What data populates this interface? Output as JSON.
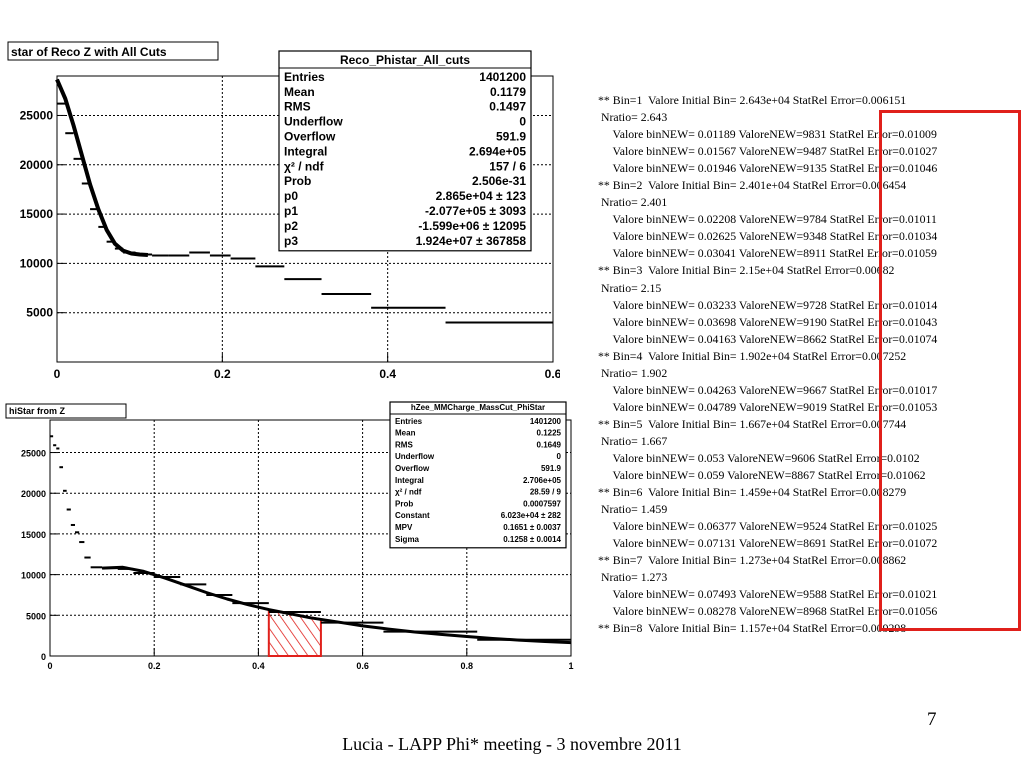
{
  "plot1": {
    "title": "star of Reco Z with All Cuts",
    "stats": {
      "name": "Reco_Phistar_All_cuts",
      "rows": [
        {
          "k": "Entries",
          "v": "1401200"
        },
        {
          "k": "Mean",
          "v": "0.1179"
        },
        {
          "k": "RMS",
          "v": "0.1497"
        },
        {
          "k": "Underflow",
          "v": "0"
        },
        {
          "k": "Overflow",
          "v": "591.9"
        },
        {
          "k": "Integral",
          "v": "2.694e+05"
        },
        {
          "k": "χ² / ndf",
          "v": "157 / 6"
        },
        {
          "k": "Prob",
          "v": "2.506e-31"
        },
        {
          "k": "p0",
          "v": "2.865e+04 ± 123"
        },
        {
          "k": "p1",
          "v": "-2.077e+05 ± 3093"
        },
        {
          "k": "p2",
          "v": "-1.599e+06 ± 12095"
        },
        {
          "k": "p3",
          "v": "1.924e+07 ± 367858"
        }
      ]
    }
  },
  "plot2": {
    "title": "hiStar from Z",
    "stats": {
      "name": "hZee_MMCharge_MassCut_PhiStar",
      "rows": [
        {
          "k": "Entries",
          "v": "1401200"
        },
        {
          "k": "Mean",
          "v": "0.1225"
        },
        {
          "k": "RMS",
          "v": "0.1649"
        },
        {
          "k": "Underflow",
          "v": "0"
        },
        {
          "k": "Overflow",
          "v": "591.9"
        },
        {
          "k": "Integral",
          "v": "2.706e+05"
        },
        {
          "k": "χ² / ndf",
          "v": "28.59 / 9"
        },
        {
          "k": "Prob",
          "v": "0.0007597"
        },
        {
          "k": "Constant",
          "v": "6.023e+04 ± 282"
        },
        {
          "k": "MPV",
          "v": "0.1651 ± 0.0037"
        },
        {
          "k": "Sigma",
          "v": "0.1258 ± 0.0014"
        }
      ]
    }
  },
  "chart_data": [
    {
      "type": "line",
      "title": "star of Reco Z with All Cuts",
      "xlim": [
        0,
        0.6
      ],
      "ylim": [
        0,
        29000
      ],
      "xticks": [
        "0",
        "0.2",
        "0.4",
        "0.6"
      ],
      "yticks": [
        "5000",
        "10000",
        "15000",
        "20000",
        "25000"
      ],
      "grid": true,
      "legend": "top-right",
      "histogram": [
        {
          "x0": 0.0,
          "x1": 0.01,
          "y": 26200
        },
        {
          "x0": 0.01,
          "x1": 0.02,
          "y": 23200
        },
        {
          "x0": 0.02,
          "x1": 0.03,
          "y": 20600
        },
        {
          "x0": 0.03,
          "x1": 0.04,
          "y": 18100
        },
        {
          "x0": 0.04,
          "x1": 0.05,
          "y": 15500
        },
        {
          "x0": 0.05,
          "x1": 0.06,
          "y": 13700
        },
        {
          "x0": 0.06,
          "x1": 0.07,
          "y": 12200
        },
        {
          "x0": 0.07,
          "x1": 0.08,
          "y": 11500
        },
        {
          "x0": 0.08,
          "x1": 0.095,
          "y": 11100
        },
        {
          "x0": 0.095,
          "x1": 0.115,
          "y": 10900
        },
        {
          "x0": 0.115,
          "x1": 0.135,
          "y": 10800
        },
        {
          "x0": 0.135,
          "x1": 0.16,
          "y": 10800
        },
        {
          "x0": 0.16,
          "x1": 0.185,
          "y": 11100
        },
        {
          "x0": 0.185,
          "x1": 0.21,
          "y": 10800
        },
        {
          "x0": 0.21,
          "x1": 0.24,
          "y": 10500
        },
        {
          "x0": 0.24,
          "x1": 0.275,
          "y": 9700
        },
        {
          "x0": 0.275,
          "x1": 0.32,
          "y": 8400
        },
        {
          "x0": 0.32,
          "x1": 0.38,
          "y": 6900
        },
        {
          "x0": 0.38,
          "x1": 0.47,
          "y": 5500
        },
        {
          "x0": 0.47,
          "x1": 0.6,
          "y": 4000
        }
      ],
      "fit": [
        [
          0.0,
          28650
        ],
        [
          0.01,
          26700
        ],
        [
          0.02,
          24000
        ],
        [
          0.03,
          21000
        ],
        [
          0.04,
          18000
        ],
        [
          0.05,
          15500
        ],
        [
          0.06,
          13400
        ],
        [
          0.07,
          12000
        ],
        [
          0.08,
          11300
        ],
        [
          0.09,
          11000
        ],
        [
          0.1,
          10900
        ],
        [
          0.11,
          10850
        ]
      ]
    },
    {
      "type": "line",
      "title": "hiStar from Z",
      "xlim": [
        0,
        1
      ],
      "ylim": [
        0,
        29000
      ],
      "xticks": [
        "0",
        "0.2",
        "0.4",
        "0.6",
        "0.8",
        "1"
      ],
      "yticks": [
        "0",
        "5000",
        "10000",
        "15000",
        "20000",
        "25000"
      ],
      "grid": true,
      "legend": "top-right",
      "histogram": [
        {
          "x0": 0.0,
          "x1": 0.006,
          "y": 27000
        },
        {
          "x0": 0.006,
          "x1": 0.012,
          "y": 25900
        },
        {
          "x0": 0.012,
          "x1": 0.018,
          "y": 25500
        },
        {
          "x0": 0.018,
          "x1": 0.025,
          "y": 23200
        },
        {
          "x0": 0.025,
          "x1": 0.032,
          "y": 20300
        },
        {
          "x0": 0.032,
          "x1": 0.04,
          "y": 18000
        },
        {
          "x0": 0.04,
          "x1": 0.048,
          "y": 16100
        },
        {
          "x0": 0.048,
          "x1": 0.056,
          "y": 15200
        },
        {
          "x0": 0.056,
          "x1": 0.066,
          "y": 14000
        },
        {
          "x0": 0.066,
          "x1": 0.078,
          "y": 12100
        },
        {
          "x0": 0.078,
          "x1": 0.1,
          "y": 10900
        },
        {
          "x0": 0.1,
          "x1": 0.13,
          "y": 10800
        },
        {
          "x0": 0.13,
          "x1": 0.16,
          "y": 10700
        },
        {
          "x0": 0.16,
          "x1": 0.2,
          "y": 10200
        },
        {
          "x0": 0.2,
          "x1": 0.25,
          "y": 9700
        },
        {
          "x0": 0.25,
          "x1": 0.3,
          "y": 8800
        },
        {
          "x0": 0.3,
          "x1": 0.35,
          "y": 7500
        },
        {
          "x0": 0.35,
          "x1": 0.42,
          "y": 6500
        },
        {
          "x0": 0.42,
          "x1": 0.52,
          "y": 5400
        },
        {
          "x0": 0.52,
          "x1": 0.64,
          "y": 4100
        },
        {
          "x0": 0.64,
          "x1": 0.82,
          "y": 3000
        },
        {
          "x0": 0.82,
          "x1": 1.0,
          "y": 2000
        }
      ],
      "fit": [
        [
          0.1,
          10800
        ],
        [
          0.14,
          10900
        ],
        [
          0.18,
          10400
        ],
        [
          0.22,
          9600
        ],
        [
          0.26,
          8700
        ],
        [
          0.3,
          7800
        ],
        [
          0.34,
          7000
        ],
        [
          0.38,
          6300
        ],
        [
          0.42,
          5700
        ],
        [
          0.46,
          5200
        ],
        [
          0.5,
          4700
        ],
        [
          0.55,
          4200
        ],
        [
          0.6,
          3700
        ],
        [
          0.65,
          3300
        ],
        [
          0.7,
          2950
        ],
        [
          0.75,
          2650
        ],
        [
          0.8,
          2400
        ],
        [
          0.85,
          2150
        ],
        [
          0.9,
          1950
        ],
        [
          0.95,
          1780
        ],
        [
          1.0,
          1650
        ]
      ],
      "highlight": {
        "x0": 0.42,
        "x1": 0.52
      }
    }
  ],
  "log": [
    "** Bin=1  Valore Initial Bin= 2.643e+04 StatRel Error=0.006151",
    " Nratio= 2.643",
    "     Valore binNEW= 0.01189 ValoreNEW=9831 StatRel Error=0.01009",
    "     Valore binNEW= 0.01567 ValoreNEW=9487 StatRel Error=0.01027",
    "     Valore binNEW= 0.01946 ValoreNEW=9135 StatRel Error=0.01046",
    "** Bin=2  Valore Initial Bin= 2.401e+04 StatRel Error=0.006454",
    " Nratio= 2.401",
    "     Valore binNEW= 0.02208 ValoreNEW=9784 StatRel Error=0.01011",
    "     Valore binNEW= 0.02625 ValoreNEW=9348 StatRel Error=0.01034",
    "     Valore binNEW= 0.03041 ValoreNEW=8911 StatRel Error=0.01059",
    "** Bin=3  Valore Initial Bin= 2.15e+04 StatRel Error=0.00682",
    " Nratio= 2.15",
    "     Valore binNEW= 0.03233 ValoreNEW=9728 StatRel Error=0.01014",
    "     Valore binNEW= 0.03698 ValoreNEW=9190 StatRel Error=0.01043",
    "     Valore binNEW= 0.04163 ValoreNEW=8662 StatRel Error=0.01074",
    "** Bin=4  Valore Initial Bin= 1.902e+04 StatRel Error=0.007252",
    " Nratio= 1.902",
    "     Valore binNEW= 0.04263 ValoreNEW=9667 StatRel Error=0.01017",
    "     Valore binNEW= 0.04789 ValoreNEW=9019 StatRel Error=0.01053",
    "** Bin=5  Valore Initial Bin= 1.667e+04 StatRel Error=0.007744",
    " Nratio= 1.667",
    "     Valore binNEW= 0.053 ValoreNEW=9606 StatRel Error=0.0102",
    "     Valore binNEW= 0.059 ValoreNEW=8867 StatRel Error=0.01062",
    "** Bin=6  Valore Initial Bin= 1.459e+04 StatRel Error=0.008279",
    " Nratio= 1.459",
    "     Valore binNEW= 0.06377 ValoreNEW=9524 StatRel Error=0.01025",
    "     Valore binNEW= 0.07131 ValoreNEW=8691 StatRel Error=0.01072",
    "** Bin=7  Valore Initial Bin= 1.273e+04 StatRel Error=0.008862",
    " Nratio= 1.273",
    "     Valore binNEW= 0.07493 ValoreNEW=9588 StatRel Error=0.01021",
    "     Valore binNEW= 0.08278 ValoreNEW=8968 StatRel Error=0.01056",
    "** Bin=8  Valore Initial Bin= 1.157e+04 StatRel Error=0.009298"
  ],
  "page_number": "7",
  "footer": "Lucia - LAPP Phi* meeting - 3 novembre 2011",
  "colors": {
    "highlight": "#e0201b",
    "box": "#e0201b"
  }
}
